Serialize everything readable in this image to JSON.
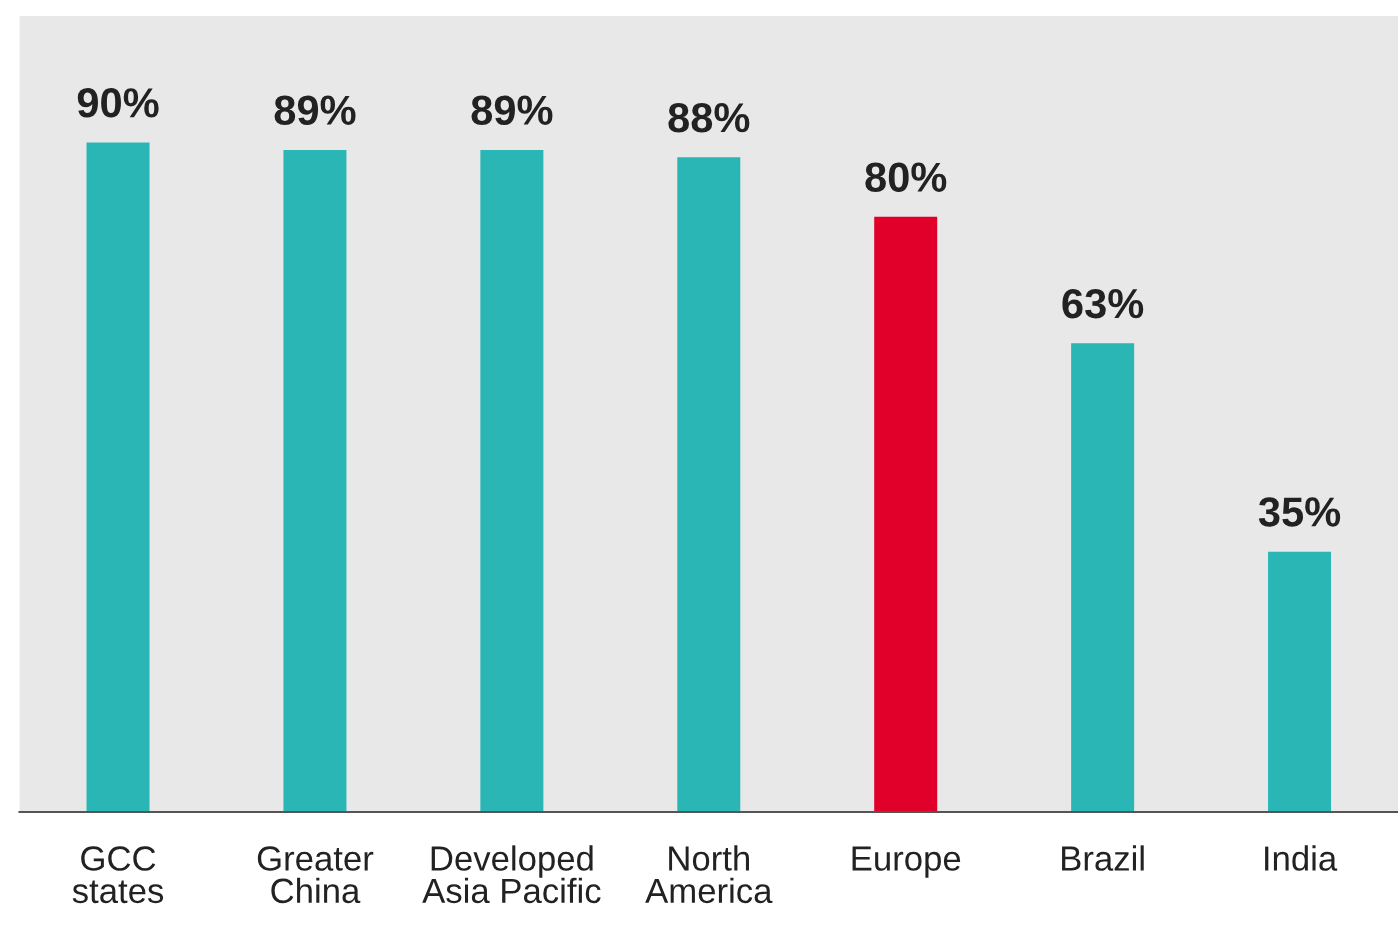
{
  "chart_data": {
    "type": "bar",
    "categories": [
      "GCC\nstates",
      "Greater\nChina",
      "Developed\nAsia Pacific",
      "North\nAmerica",
      "Europe",
      "Brazil",
      "India"
    ],
    "values": [
      90,
      89,
      89,
      88,
      80,
      63,
      35
    ],
    "value_labels": [
      "90%",
      "89%",
      "89%",
      "88%",
      "80%",
      "63%",
      "35%"
    ],
    "colors": [
      "#2bb6b6",
      "#2bb6b6",
      "#2bb6b6",
      "#2bb6b6",
      "#e0002a",
      "#2bb6b6",
      "#2bb6b6"
    ],
    "ylim": [
      0,
      107
    ],
    "tick_labels": "x",
    "grid": false,
    "legend": false
  }
}
